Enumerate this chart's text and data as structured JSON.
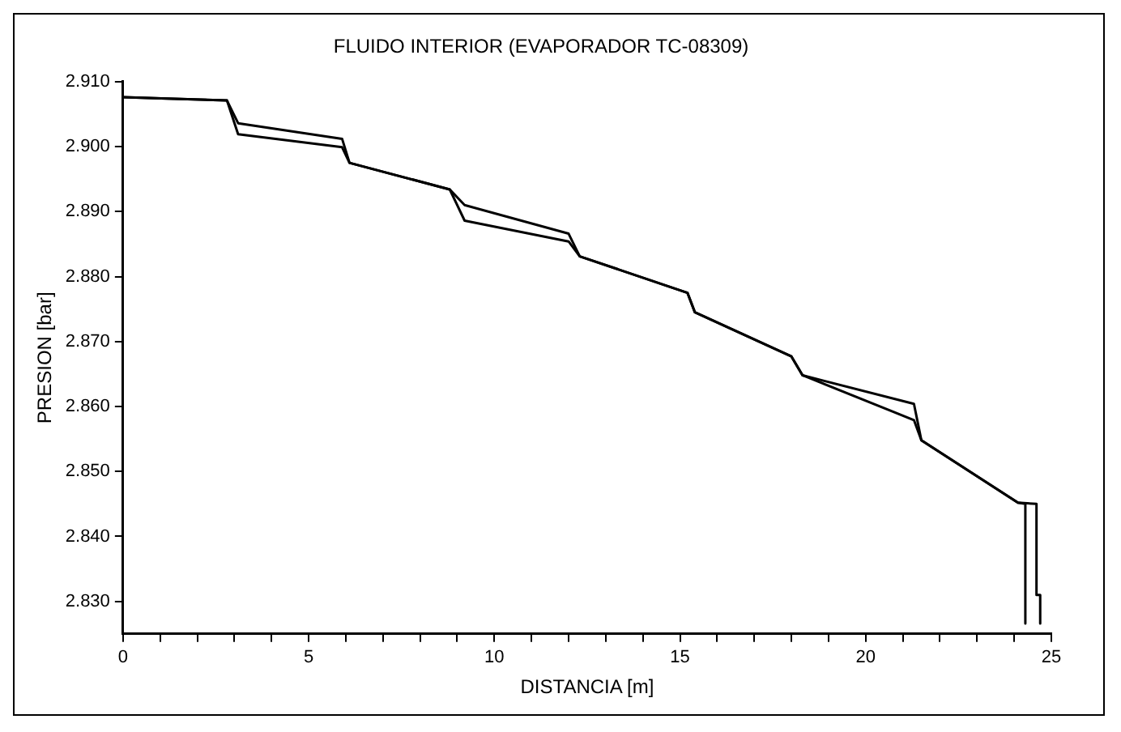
{
  "chart_data": {
    "type": "line",
    "title": "FLUIDO INTERIOR (EVAPORADOR TC-08309)",
    "xlabel": "DISTANCIA [m]",
    "ylabel": "PRESION [bar]",
    "xlim": [
      0,
      25
    ],
    "ylim": [
      2.825,
      2.91
    ],
    "xticks": [
      0,
      {
        "value": 1,
        "label": null
      },
      {
        "value": 2,
        "label": null
      },
      {
        "value": 3,
        "label": null
      },
      {
        "value": 4,
        "label": null
      },
      5,
      {
        "value": 6,
        "label": null
      },
      {
        "value": 7,
        "label": null
      },
      {
        "value": 8,
        "label": null
      },
      {
        "value": 9,
        "label": null
      },
      10,
      {
        "value": 11,
        "label": null
      },
      {
        "value": 12,
        "label": null
      },
      {
        "value": 13,
        "label": null
      },
      {
        "value": 14,
        "label": null
      },
      15,
      {
        "value": 16,
        "label": null
      },
      {
        "value": 17,
        "label": null
      },
      {
        "value": 18,
        "label": null
      },
      {
        "value": 19,
        "label": null
      },
      20,
      {
        "value": 21,
        "label": null
      },
      {
        "value": 22,
        "label": null
      },
      {
        "value": 23,
        "label": null
      },
      {
        "value": 24,
        "label": null
      },
      25
    ],
    "yticks": [
      {
        "value": 2.83,
        "label": "2.830"
      },
      {
        "value": 2.84,
        "label": "2.840"
      },
      {
        "value": 2.85,
        "label": "2.850"
      },
      {
        "value": 2.86,
        "label": "2.860"
      },
      {
        "value": 2.87,
        "label": "2.870"
      },
      {
        "value": 2.88,
        "label": "2.880"
      },
      {
        "value": 2.89,
        "label": "2.890"
      },
      {
        "value": 2.9,
        "label": "2.900"
      },
      {
        "value": 2.91,
        "label": "2.910"
      }
    ],
    "grid": false,
    "legend": false,
    "marker": "none",
    "line_style": "solid",
    "series": [
      {
        "color": "#000000",
        "x": [
          0,
          1.2,
          2.8,
          3.1,
          5.9,
          6.1,
          8.8,
          9.2,
          12,
          12.3,
          15.2,
          15.4,
          18,
          18.3,
          21.3,
          21.5,
          24.1,
          24.3,
          24.3
        ],
        "values": [
          2.9076,
          2.9074,
          2.9071,
          2.9036,
          2.9012,
          2.8975,
          2.8934,
          2.891,
          2.8866,
          2.8831,
          2.8775,
          2.8745,
          2.8677,
          2.8648,
          2.8579,
          2.8548,
          2.8452,
          2.845,
          2.8266
        ]
      },
      {
        "color": "#000000",
        "x": [
          0,
          1.2,
          2.8,
          3.1,
          5.9,
          6.1,
          8.8,
          9.2,
          12,
          12.3,
          15.2,
          15.4,
          18,
          18.3,
          21.3,
          21.5,
          24.1,
          24.6,
          24.6,
          24.7,
          24.7
        ],
        "values": [
          2.9076,
          2.9074,
          2.9071,
          2.9019,
          2.8999,
          2.8975,
          2.8934,
          2.8886,
          2.8854,
          2.8831,
          2.8775,
          2.8745,
          2.8677,
          2.8648,
          2.8604,
          2.8548,
          2.8452,
          2.845,
          2.831,
          2.831,
          2.8266
        ]
      }
    ]
  }
}
